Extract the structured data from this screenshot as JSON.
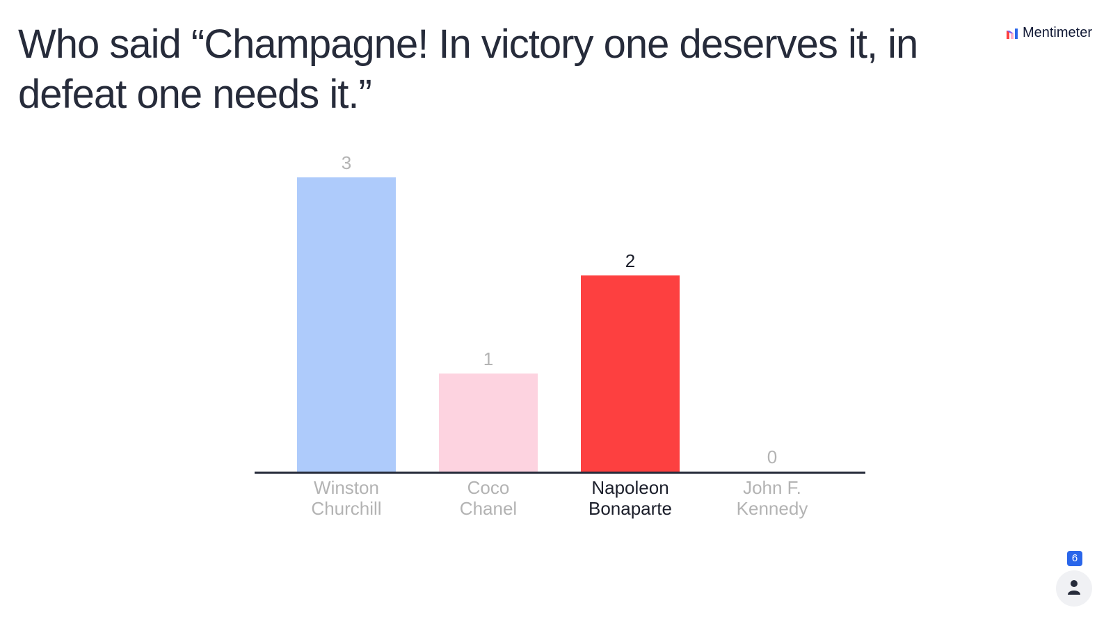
{
  "question": {
    "title": "Who said “Champagne! In victory one deserves it, in defeat one needs it.”"
  },
  "brand": {
    "name": "Mentimeter",
    "icon": "mentimeter-logo-icon"
  },
  "participants": {
    "count": "6",
    "icon": "person-icon"
  },
  "chart_data": {
    "type": "bar",
    "title": "",
    "xlabel": "",
    "ylabel": "",
    "ylim": [
      0,
      3
    ],
    "grid": false,
    "categories": [
      "Winston Churchill",
      "Coco Chanel",
      "Napoleon Bonaparte",
      "John F. Kennedy"
    ],
    "category_lines": [
      [
        "Winston",
        "Churchill"
      ],
      [
        "Coco",
        "Chanel"
      ],
      [
        "Napoleon",
        "Bonaparte"
      ],
      [
        "John F.",
        "Kennedy"
      ]
    ],
    "values": [
      3,
      1,
      2,
      0
    ],
    "bar_colors": [
      "#aecbfb",
      "#fdd3e0",
      "#fd4040",
      "#d0d0d0"
    ],
    "highlighted_category": "Napoleon Bonaparte",
    "label_color": "#b3b3b3",
    "highlight_label_color": "#1c1f2b",
    "axis_color": "#262b3a"
  }
}
